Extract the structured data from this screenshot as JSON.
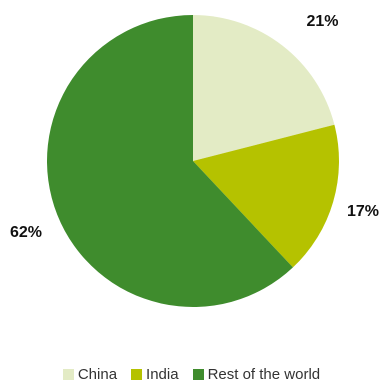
{
  "chart_data": {
    "type": "pie",
    "categories": [
      "China",
      "India",
      "Rest of the world"
    ],
    "values": [
      21,
      17,
      62
    ],
    "value_labels": [
      "21%",
      "17%",
      "62%"
    ],
    "colors": [
      "#e3ebc5",
      "#b5c200",
      "#3f8c2d"
    ],
    "legend_position": "bottom"
  },
  "legend": {
    "items": [
      {
        "label": "China",
        "color": "#e3ebc5"
      },
      {
        "label": "India",
        "color": "#b5c200"
      },
      {
        "label": "Rest of the world",
        "color": "#3f8c2d"
      }
    ]
  }
}
